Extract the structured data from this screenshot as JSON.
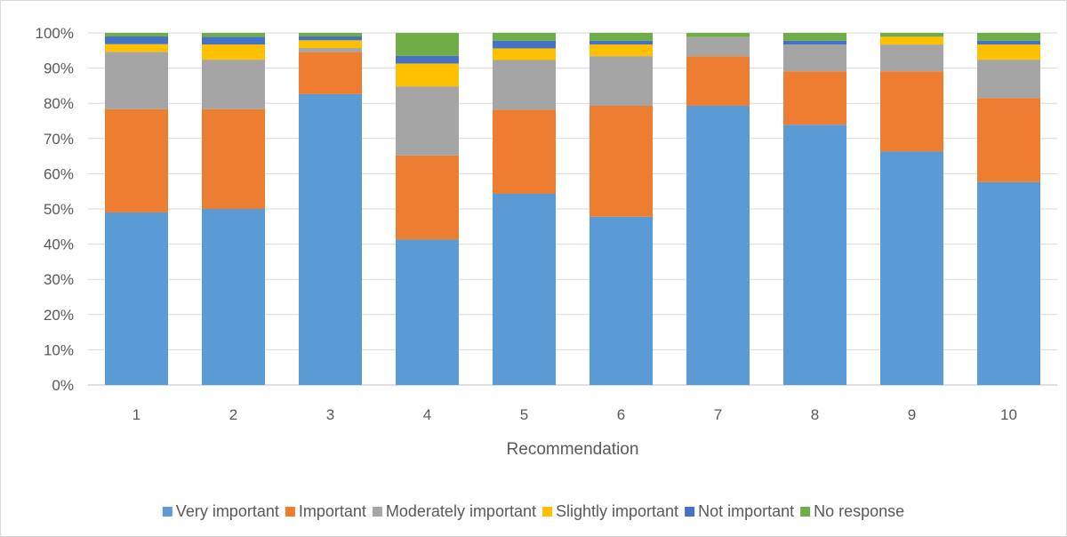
{
  "chart_data": {
    "type": "bar",
    "stacked": true,
    "percent": true,
    "title": "",
    "xlabel": "Recommendation",
    "ylabel": "",
    "ylim": [
      0,
      100
    ],
    "yticks": [
      "0%",
      "10%",
      "20%",
      "30%",
      "40%",
      "50%",
      "60%",
      "70%",
      "80%",
      "90%",
      "100%"
    ],
    "categories": [
      "1",
      "2",
      "3",
      "4",
      "5",
      "6",
      "7",
      "8",
      "9",
      "10"
    ],
    "legend_position": "bottom",
    "grid": true,
    "series": [
      {
        "name": "Very important",
        "color": "#5b9bd5",
        "values": [
          49.0,
          50.0,
          82.6,
          41.3,
          54.3,
          47.8,
          79.3,
          73.9,
          66.3,
          57.6
        ]
      },
      {
        "name": "Important",
        "color": "#ed7d31",
        "values": [
          29.3,
          28.3,
          12.0,
          23.9,
          23.9,
          31.5,
          14.1,
          15.2,
          22.8,
          23.9
        ]
      },
      {
        "name": "Moderately important",
        "color": "#a5a5a5",
        "values": [
          16.3,
          14.1,
          1.1,
          19.6,
          14.1,
          14.1,
          5.4,
          7.6,
          7.6,
          10.9
        ]
      },
      {
        "name": "Slightly important",
        "color": "#ffc000",
        "values": [
          2.2,
          4.3,
          2.2,
          6.5,
          3.3,
          3.3,
          0.0,
          0.0,
          2.2,
          4.3
        ]
      },
      {
        "name": "Not important",
        "color": "#4472c4",
        "values": [
          2.2,
          2.2,
          1.1,
          2.2,
          2.2,
          1.1,
          0.0,
          1.1,
          0.0,
          1.1
        ]
      },
      {
        "name": "No response",
        "color": "#70ad47",
        "values": [
          1.0,
          1.1,
          1.0,
          6.5,
          2.2,
          2.2,
          1.2,
          2.2,
          1.1,
          2.2
        ]
      }
    ]
  }
}
